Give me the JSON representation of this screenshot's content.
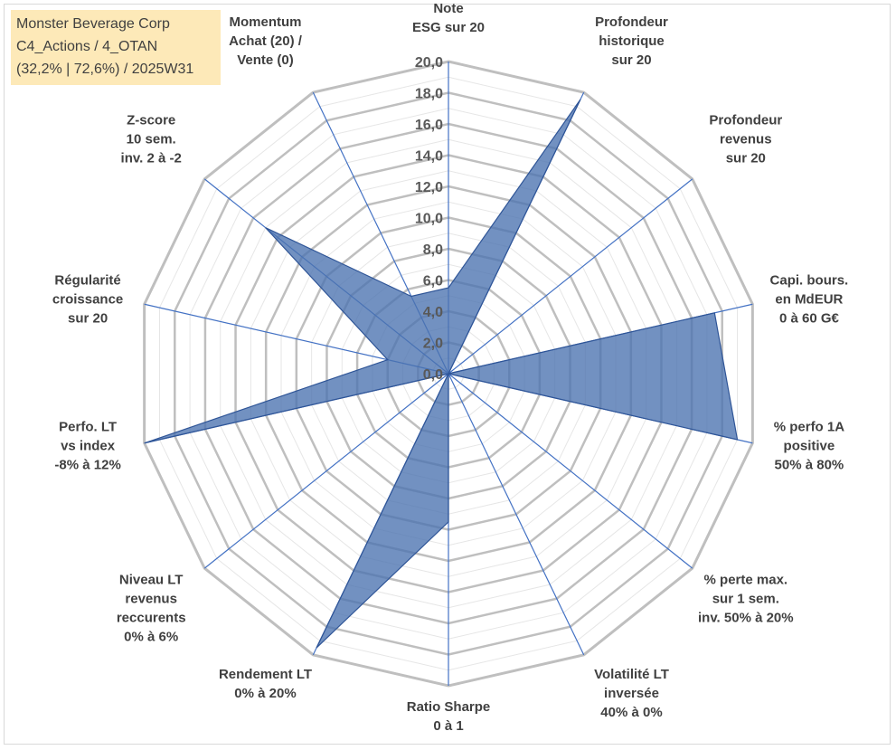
{
  "info": {
    "line1": "Monster Beverage Corp",
    "line2": "C4_Actions / 4_OTAN",
    "line3": "(32,2% | 72,6%) / 2025W31"
  },
  "chart_data": {
    "type": "radar",
    "rmin": 0,
    "rmax": 20,
    "tick_step": 2,
    "tick_labels": [
      "0,0",
      "2,0",
      "4,0",
      "6,0",
      "8,0",
      "10,0",
      "12,0",
      "14,0",
      "16,0",
      "18,0",
      "20,0"
    ],
    "grid": true,
    "axes": [
      [
        "Note",
        "ESG sur 20"
      ],
      [
        "Profondeur",
        "historique",
        "sur 20"
      ],
      [
        "Profondeur",
        "revenus",
        "sur 20"
      ],
      [
        "Capi. bours.",
        "en MdEUR",
        "0 à 60 G€"
      ],
      [
        "% perfo 1A",
        "positive",
        "50% à 80%"
      ],
      [
        "% perte max.",
        "sur 1 sem.",
        "inv. 50% à 20%"
      ],
      [
        "Volatilité LT",
        "inversée",
        "40% à 0%"
      ],
      [
        "Ratio Sharpe",
        "0 à 1"
      ],
      [
        "Rendement LT",
        "0% à 20%"
      ],
      [
        "Niveau LT",
        "revenus",
        "reccurents",
        "0% à 6%"
      ],
      [
        "Perfo. LT",
        "vs index",
        "-8% à 12%"
      ],
      [
        "Régularité",
        "croissance",
        "sur 20"
      ],
      [
        "Z-score",
        "10 sem.",
        "inv. 2 à -2"
      ],
      [
        "Momentum",
        "Achat (20) /",
        "Vente (0)"
      ]
    ],
    "series": [
      {
        "values": [
          5.5,
          19.5,
          0,
          17.5,
          19.0,
          0,
          0,
          9.5,
          19.5,
          0,
          20.0,
          4.0,
          15.0,
          5.5
        ],
        "color": "#4a72b0"
      }
    ]
  }
}
